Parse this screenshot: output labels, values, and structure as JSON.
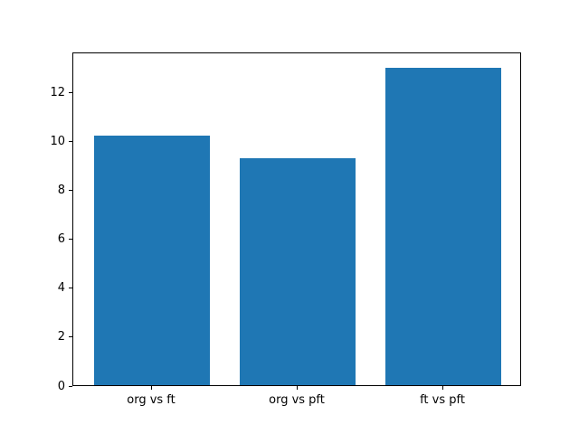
{
  "chart_data": {
    "type": "bar",
    "title": "",
    "xlabel": "",
    "ylabel": "",
    "categories": [
      "org vs ft",
      "org vs pft",
      "ft vs pft"
    ],
    "values": [
      10.2,
      9.3,
      13.0
    ],
    "yticks": [
      0,
      2,
      4,
      6,
      8,
      10,
      12
    ],
    "ylim": [
      0,
      13.65
    ],
    "bar_color": "#1f77b4",
    "background_color": "#ffffff",
    "spine_color": "#000000",
    "grid": false,
    "legend": "none"
  }
}
